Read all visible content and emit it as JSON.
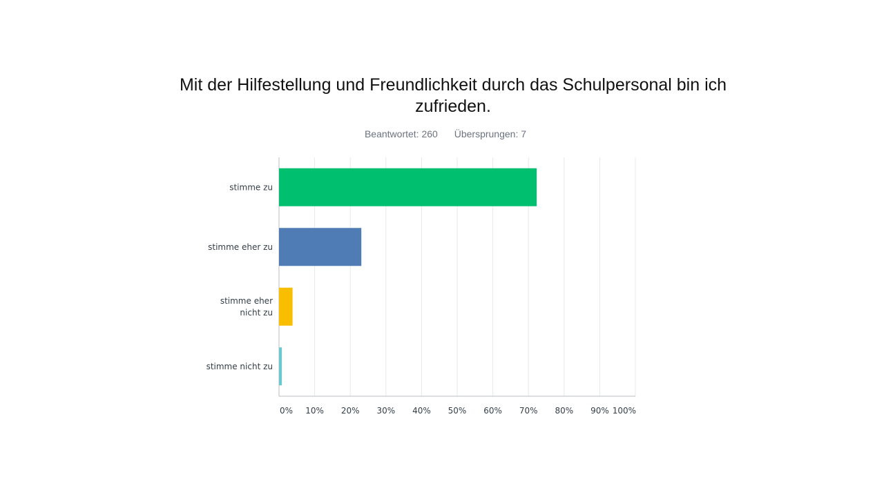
{
  "chart_data": {
    "type": "bar",
    "orientation": "horizontal",
    "title": "Mit der Hilfestellung und Freundlichkeit durch das Schulpersonal bin ich zufrieden.",
    "answered": "Beantwortet: 260",
    "skipped": "Übersprungen: 7",
    "categories": [
      [
        "stimme zu"
      ],
      [
        "stimme eher zu"
      ],
      [
        "stimme eher",
        "nicht zu"
      ],
      [
        "stimme nicht zu"
      ]
    ],
    "values": [
      72.3,
      23.1,
      3.8,
      0.8
    ],
    "colors": [
      "#00bf6f",
      "#507cb6",
      "#f9be00",
      "#6bc8cd"
    ],
    "xlim": [
      0,
      100
    ],
    "xticks": [
      "0%",
      "10%",
      "20%",
      "30%",
      "40%",
      "50%",
      "60%",
      "70%",
      "80%",
      "90%",
      "100%"
    ],
    "grid": true
  }
}
